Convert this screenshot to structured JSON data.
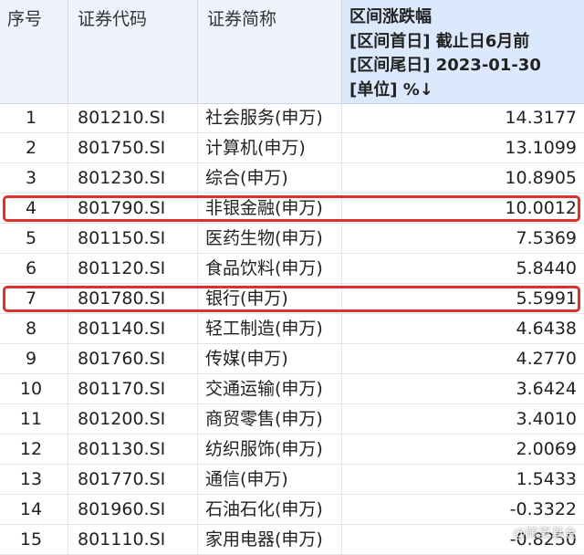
{
  "table": {
    "headers": {
      "index": "序号",
      "code": "证券代码",
      "name": "证券简称",
      "change_lines": [
        "区间涨跌幅",
        "[区间首日] 截止日6月前",
        "[区间尾日] 2023-01-30",
        "[单位] %↓"
      ]
    },
    "rows": [
      {
        "idx": "1",
        "code": "801210.SI",
        "name": "社会服务(申万)",
        "value": "14.3177",
        "highlight": false
      },
      {
        "idx": "2",
        "code": "801750.SI",
        "name": "计算机(申万)",
        "value": "13.1099",
        "highlight": false
      },
      {
        "idx": "3",
        "code": "801230.SI",
        "name": "综合(申万)",
        "value": "10.8905",
        "highlight": false
      },
      {
        "idx": "4",
        "code": "801790.SI",
        "name": "非银金融(申万)",
        "value": "10.0012",
        "highlight": true
      },
      {
        "idx": "5",
        "code": "801150.SI",
        "name": "医药生物(申万)",
        "value": "7.5369",
        "highlight": false
      },
      {
        "idx": "6",
        "code": "801120.SI",
        "name": "食品饮料(申万)",
        "value": "5.8440",
        "highlight": false
      },
      {
        "idx": "7",
        "code": "801780.SI",
        "name": "银行(申万)",
        "value": "5.5991",
        "highlight": true
      },
      {
        "idx": "8",
        "code": "801140.SI",
        "name": "轻工制造(申万)",
        "value": "4.6438",
        "highlight": false
      },
      {
        "idx": "9",
        "code": "801760.SI",
        "name": "传媒(申万)",
        "value": "4.2770",
        "highlight": false
      },
      {
        "idx": "10",
        "code": "801170.SI",
        "name": "交通运输(申万)",
        "value": "3.6424",
        "highlight": false
      },
      {
        "idx": "11",
        "code": "801200.SI",
        "name": "商贸零售(申万)",
        "value": "3.4010",
        "highlight": false
      },
      {
        "idx": "12",
        "code": "801130.SI",
        "name": "纺织服饰(申万)",
        "value": "2.0069",
        "highlight": false
      },
      {
        "idx": "13",
        "code": "801770.SI",
        "name": "通信(申万)",
        "value": "1.5433",
        "highlight": false
      },
      {
        "idx": "14",
        "code": "801960.SI",
        "name": "石油石化(申万)",
        "value": "-0.3322",
        "highlight": false
      },
      {
        "idx": "15",
        "code": "801110.SI",
        "name": "家用电器(申万)",
        "value": "-0.8250",
        "highlight": false
      }
    ]
  },
  "highlight_color": "#e0302c",
  "watermark": "@鲸夏基金"
}
